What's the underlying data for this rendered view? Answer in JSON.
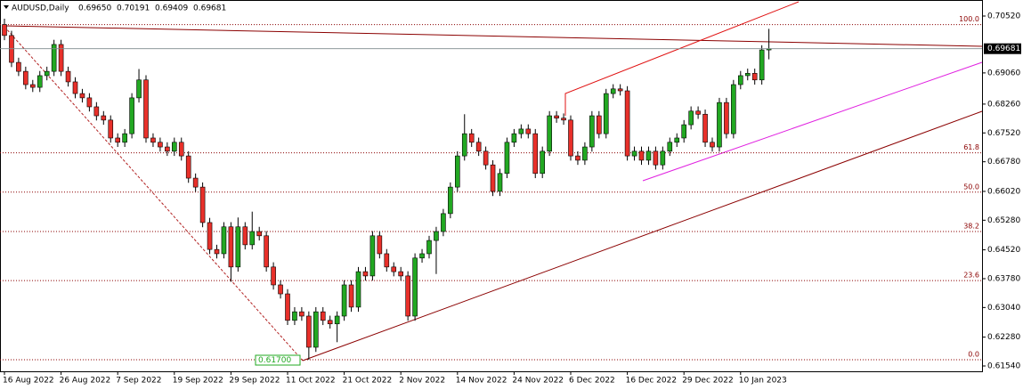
{
  "chart_data": {
    "type": "candlestick",
    "header": {
      "symbol": "AUDUSD,Daily",
      "ohlc": [
        "0.69650",
        "0.70191",
        "0.69409",
        "0.69681"
      ]
    },
    "categories": [
      "16 Aug 2022",
      null,
      null,
      null,
      null,
      null,
      null,
      null,
      "26 Aug 2022",
      null,
      null,
      null,
      null,
      null,
      null,
      null,
      "7 Sep 2022",
      null,
      null,
      null,
      null,
      null,
      null,
      null,
      "19 Sep 2022",
      null,
      null,
      null,
      null,
      null,
      null,
      null,
      "29 Sep 2022",
      null,
      null,
      null,
      null,
      null,
      null,
      null,
      "11 Oct 2022",
      null,
      null,
      null,
      null,
      null,
      null,
      null,
      "21 Oct 2022",
      null,
      null,
      null,
      null,
      null,
      null,
      null,
      "2 Nov 2022",
      null,
      null,
      null,
      null,
      null,
      null,
      null,
      "14 Nov 2022",
      null,
      null,
      null,
      null,
      null,
      null,
      null,
      "24 Nov 2022",
      null,
      null,
      null,
      null,
      null,
      null,
      null,
      "6 Dec 2022",
      null,
      null,
      null,
      null,
      null,
      null,
      null,
      "16 Dec 2022",
      null,
      null,
      null,
      null,
      null,
      null,
      null,
      "29 Dec 2022",
      null,
      null,
      null,
      null,
      null,
      null,
      null,
      "10 Jan 2023",
      null,
      null,
      null,
      null
    ],
    "open": [
      0.703,
      0.7002,
      0.6933,
      0.691,
      0.6876,
      0.6869,
      0.6899,
      0.691,
      0.6979,
      0.691,
      0.6883,
      0.6853,
      0.6842,
      0.6819,
      0.6796,
      0.6785,
      0.6739,
      0.6728,
      0.675,
      0.6842,
      0.6888,
      0.6739,
      0.6728,
      0.6716,
      0.6705,
      0.6728,
      0.6693,
      0.6636,
      0.6613,
      0.6522,
      0.6453,
      0.6442,
      0.6511,
      0.6408,
      0.6511,
      0.6465,
      0.6499,
      0.6488,
      0.6408,
      0.6362,
      0.6339,
      0.6271,
      0.6293,
      0.6282,
      0.6202,
      0.6293,
      0.6271,
      0.6262,
      0.6282,
      0.6362,
      0.6305,
      0.6396,
      0.6385,
      0.6488,
      0.6442,
      0.6408,
      0.6396,
      0.6385,
      0.6282,
      0.6431,
      0.6442,
      0.6476,
      0.6499,
      0.6545,
      0.6613,
      0.6693,
      0.675,
      0.6728,
      0.6705,
      0.667,
      0.6602,
      0.6648,
      0.6728,
      0.675,
      0.6762,
      0.675,
      0.6648,
      0.6705,
      0.6796,
      0.679,
      0.6785,
      0.6693,
      0.6682,
      0.6716,
      0.6796,
      0.675,
      0.6853,
      0.6865,
      0.686,
      0.6693,
      0.6705,
      0.6682,
      0.6705,
      0.667,
      0.6705,
      0.6728,
      0.6739,
      0.6773,
      0.6808,
      0.68,
      0.6728,
      0.6716,
      0.683,
      0.675,
      0.6876,
      0.6899,
      0.6905,
      0.6888,
      0.6965
    ],
    "high": [
      0.7045,
      0.7014,
      0.6945,
      0.6922,
      0.6888,
      0.6911,
      0.6922,
      0.6991,
      0.6991,
      0.6922,
      0.6895,
      0.6865,
      0.6854,
      0.6831,
      0.6808,
      0.6797,
      0.6751,
      0.6762,
      0.6854,
      0.6916,
      0.69,
      0.6751,
      0.674,
      0.6728,
      0.674,
      0.674,
      0.6705,
      0.6648,
      0.6625,
      0.6534,
      0.6465,
      0.6523,
      0.6523,
      0.6535,
      0.6523,
      0.655,
      0.6511,
      0.65,
      0.642,
      0.6374,
      0.6351,
      0.6305,
      0.6305,
      0.6294,
      0.6305,
      0.6305,
      0.6283,
      0.6294,
      0.6374,
      0.6374,
      0.6408,
      0.6408,
      0.65,
      0.65,
      0.6454,
      0.642,
      0.6408,
      0.6397,
      0.6443,
      0.6454,
      0.6488,
      0.6511,
      0.6557,
      0.6625,
      0.6705,
      0.68,
      0.6762,
      0.674,
      0.6717,
      0.6682,
      0.666,
      0.674,
      0.6762,
      0.6774,
      0.6774,
      0.6762,
      0.6717,
      0.6808,
      0.6808,
      0.6802,
      0.6797,
      0.6705,
      0.6728,
      0.6808,
      0.6808,
      0.6865,
      0.6877,
      0.6877,
      0.6872,
      0.6717,
      0.6717,
      0.6717,
      0.6717,
      0.6717,
      0.674,
      0.6751,
      0.6785,
      0.682,
      0.682,
      0.6812,
      0.674,
      0.6842,
      0.6842,
      0.6888,
      0.6911,
      0.6917,
      0.6917,
      0.6977,
      0.70191
    ],
    "low": [
      0.699,
      0.6921,
      0.6898,
      0.6864,
      0.6857,
      0.6857,
      0.6887,
      0.6898,
      0.6898,
      0.6871,
      0.6841,
      0.683,
      0.6807,
      0.6784,
      0.6773,
      0.6727,
      0.6716,
      0.6716,
      0.6738,
      0.683,
      0.6727,
      0.6716,
      0.6704,
      0.6693,
      0.6693,
      0.6681,
      0.6624,
      0.6601,
      0.651,
      0.6441,
      0.643,
      0.643,
      0.637,
      0.6396,
      0.6453,
      0.6453,
      0.6476,
      0.6396,
      0.635,
      0.6327,
      0.6259,
      0.6259,
      0.627,
      0.617,
      0.619,
      0.6259,
      0.625,
      0.6215,
      0.627,
      0.6293,
      0.6293,
      0.6373,
      0.6373,
      0.643,
      0.6396,
      0.6384,
      0.6373,
      0.627,
      0.627,
      0.6419,
      0.643,
      0.639,
      0.6487,
      0.6533,
      0.6601,
      0.6681,
      0.6716,
      0.6693,
      0.6658,
      0.659,
      0.659,
      0.6636,
      0.6716,
      0.6738,
      0.6738,
      0.6636,
      0.6636,
      0.6693,
      0.6778,
      0.6773,
      0.6681,
      0.667,
      0.667,
      0.6704,
      0.6738,
      0.6738,
      0.6841,
      0.6848,
      0.6681,
      0.6681,
      0.667,
      0.667,
      0.6658,
      0.6658,
      0.6693,
      0.6716,
      0.6727,
      0.6761,
      0.6788,
      0.6716,
      0.6704,
      0.6704,
      0.6738,
      0.6738,
      0.6864,
      0.6887,
      0.6876,
      0.6876,
      0.69409
    ],
    "close": [
      0.7002,
      0.6933,
      0.691,
      0.6876,
      0.6869,
      0.6899,
      0.691,
      0.6979,
      0.691,
      0.6883,
      0.6853,
      0.6842,
      0.6819,
      0.6796,
      0.6785,
      0.6739,
      0.6728,
      0.675,
      0.6842,
      0.6888,
      0.6739,
      0.6728,
      0.6716,
      0.6705,
      0.6728,
      0.6693,
      0.6636,
      0.6613,
      0.6522,
      0.6453,
      0.6442,
      0.6511,
      0.6408,
      0.6511,
      0.6465,
      0.6499,
      0.6488,
      0.6408,
      0.6362,
      0.6339,
      0.6271,
      0.6293,
      0.6282,
      0.6202,
      0.6293,
      0.6271,
      0.6262,
      0.6282,
      0.6362,
      0.6305,
      0.6396,
      0.6385,
      0.6488,
      0.6442,
      0.6408,
      0.6396,
      0.6385,
      0.6282,
      0.6431,
      0.6442,
      0.6476,
      0.6499,
      0.6545,
      0.6613,
      0.6693,
      0.675,
      0.6728,
      0.6705,
      0.667,
      0.6602,
      0.6648,
      0.6728,
      0.675,
      0.6762,
      0.675,
      0.6648,
      0.6705,
      0.6796,
      0.679,
      0.6785,
      0.6693,
      0.6682,
      0.6716,
      0.6796,
      0.675,
      0.6853,
      0.6865,
      0.686,
      0.6693,
      0.6705,
      0.6682,
      0.6705,
      0.667,
      0.6705,
      0.6728,
      0.6739,
      0.6773,
      0.6808,
      0.68,
      0.6728,
      0.6716,
      0.683,
      0.675,
      0.6876,
      0.6899,
      0.6905,
      0.6888,
      0.6965,
      0.69681
    ],
    "colors": {
      "up": "#22a822",
      "down": "#e8302a"
    },
    "ylim": [
      0.61403,
      0.70931
    ],
    "yticks": [
      {
        "value": 0.7052,
        "label": "0.70520"
      },
      {
        "value": 0.6906,
        "label": "0.69060"
      },
      {
        "value": 0.6826,
        "label": "0.68260"
      },
      {
        "value": 0.6752,
        "label": "0.67520"
      },
      {
        "value": 0.6678,
        "label": "0.66780"
      },
      {
        "value": 0.6602,
        "label": "0.66020"
      },
      {
        "value": 0.6528,
        "label": "0.65280"
      },
      {
        "value": 0.6452,
        "label": "0.64520"
      },
      {
        "value": 0.6378,
        "label": "0.63780"
      },
      {
        "value": 0.6304,
        "label": "0.63040"
      },
      {
        "value": 0.6228,
        "label": "0.62280"
      },
      {
        "value": 0.6154,
        "label": "0.61540"
      }
    ],
    "fib_levels": [
      {
        "value": 0.703,
        "label": "100.0"
      },
      {
        "value": 0.6701,
        "label": "61.8"
      },
      {
        "value": 0.66,
        "label": "50.0"
      },
      {
        "value": 0.6499,
        "label": "38.2"
      },
      {
        "value": 0.6373,
        "label": "23.6"
      },
      {
        "value": 0.617,
        "label": "0.0"
      }
    ],
    "annotations": [
      {
        "value": 0.617,
        "label": "0.61700"
      }
    ]
  }
}
